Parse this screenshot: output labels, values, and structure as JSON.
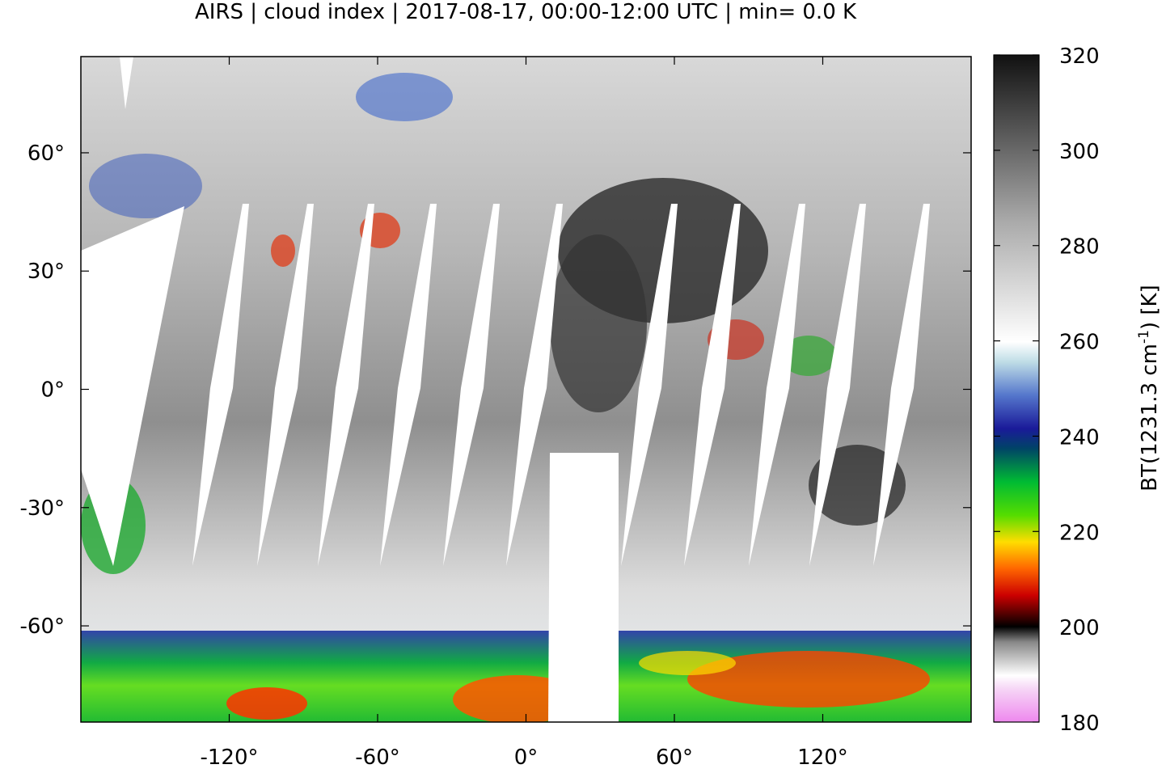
{
  "chart_data": {
    "type": "map",
    "title": "AIRS | cloud index | 2017-08-17, 00:00-12:00 UTC | min= 0.0 K",
    "xlim": [
      -180,
      180
    ],
    "ylim": [
      -84.4,
      84.4
    ],
    "xticks": [
      {
        "value": -120,
        "label": "-120°"
      },
      {
        "value": -60,
        "label": "-60°"
      },
      {
        "value": 0,
        "label": "0°"
      },
      {
        "value": 60,
        "label": "60°"
      },
      {
        "value": 120,
        "label": "120°"
      }
    ],
    "yticks": [
      {
        "value": -60,
        "label": "-60°"
      },
      {
        "value": -30,
        "label": "-30°"
      },
      {
        "value": 0,
        "label": "0°"
      },
      {
        "value": 30,
        "label": "30°"
      },
      {
        "value": 60,
        "label": "60°"
      }
    ],
    "colorbar": {
      "lim": [
        180,
        320
      ],
      "ticks": [
        180,
        200,
        220,
        240,
        260,
        280,
        300,
        320
      ],
      "label": {
        "prefix": "BT(1231.3 cm",
        "superscript": "-1",
        "suffix": ") [K]"
      }
    }
  }
}
